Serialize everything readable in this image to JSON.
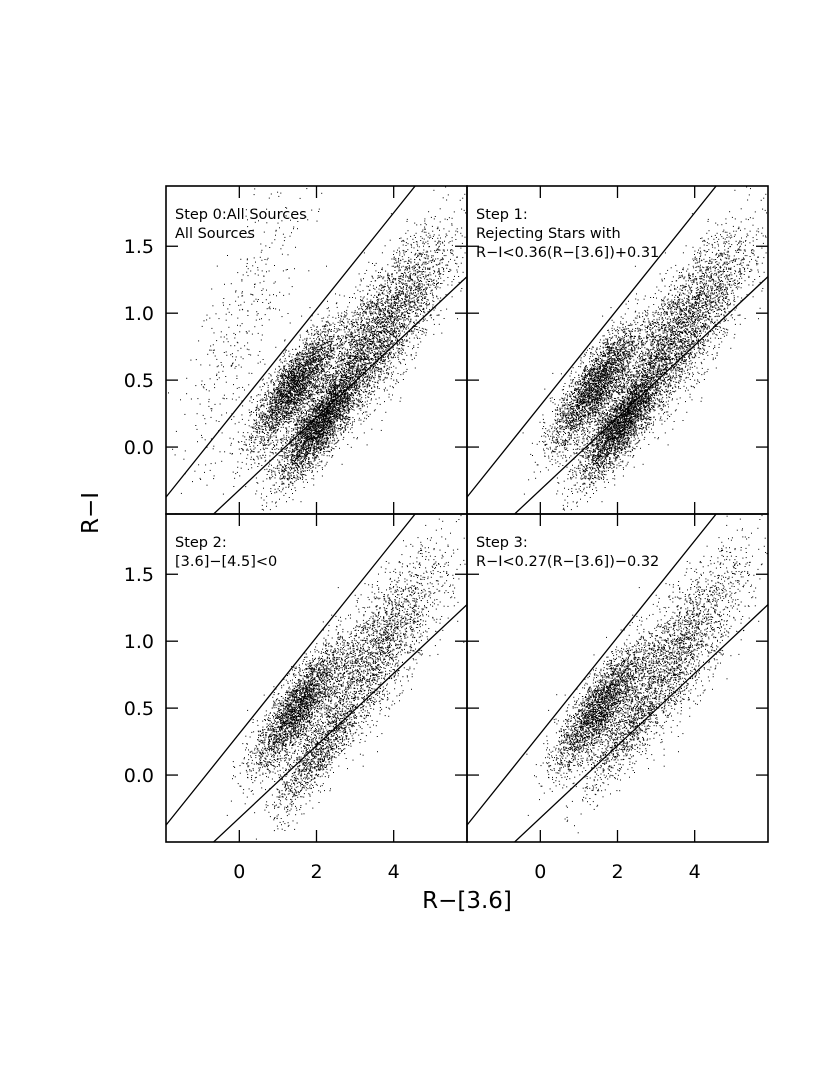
{
  "figure": {
    "xlabel": "R−[3.6]",
    "ylabel": "R−I"
  },
  "chart_data": [
    {
      "type": "scatter",
      "panel": "top-left",
      "annotation": [
        "Step 0:All Sources",
        "All Sources"
      ],
      "xlim": [
        -1.9,
        5.9
      ],
      "ylim": [
        -0.5,
        1.95
      ],
      "x_ticks": [
        0,
        2,
        4
      ],
      "y_ticks": [
        0.0,
        0.5,
        1.0,
        1.5
      ],
      "lines": [
        {
          "slope": 0.36,
          "intercept": 0.31
        },
        {
          "slope": 0.27,
          "intercept": -0.32
        }
      ],
      "clusters": [
        {
          "cx": 1.4,
          "cy": 0.45,
          "count": 3000
        },
        {
          "cx": 2.1,
          "cy": 0.18,
          "count": 3200
        },
        {
          "cx": 3.6,
          "cy": 0.85,
          "count": 3800
        },
        {
          "cx": 0.1,
          "cy": 0.9,
          "count": 400
        }
      ]
    },
    {
      "type": "scatter",
      "panel": "top-right",
      "annotation": [
        "Step 1:",
        "Rejecting Stars with",
        "R−I<0.36(R−[3.6])+0.31"
      ],
      "xlim": [
        -1.9,
        5.9
      ],
      "ylim": [
        -0.5,
        1.95
      ],
      "x_ticks": [
        0,
        2,
        4
      ],
      "y_ticks": [
        0.0,
        0.5,
        1.0,
        1.5
      ],
      "lines": [
        {
          "slope": 0.36,
          "intercept": 0.31
        },
        {
          "slope": 0.27,
          "intercept": -0.32
        }
      ],
      "clusters": [
        {
          "cx": 1.4,
          "cy": 0.45,
          "count": 2900
        },
        {
          "cx": 2.1,
          "cy": 0.18,
          "count": 3100
        },
        {
          "cx": 3.6,
          "cy": 0.85,
          "count": 3600
        }
      ]
    },
    {
      "type": "scatter",
      "panel": "bottom-left",
      "annotation": [
        "Step 2:",
        "[3.6]−[4.5]<0"
      ],
      "xlim": [
        -1.9,
        5.9
      ],
      "ylim": [
        -0.5,
        1.95
      ],
      "x_ticks": [
        0,
        2,
        4
      ],
      "y_ticks": [
        0.0,
        0.5,
        1.0,
        1.5
      ],
      "lines": [
        {
          "slope": 0.36,
          "intercept": 0.31
        },
        {
          "slope": 0.27,
          "intercept": -0.32
        }
      ],
      "clusters": [
        {
          "cx": 1.5,
          "cy": 0.5,
          "count": 2700
        },
        {
          "cx": 2.0,
          "cy": 0.15,
          "count": 1100
        },
        {
          "cx": 3.5,
          "cy": 0.9,
          "count": 2500
        }
      ]
    },
    {
      "type": "scatter",
      "panel": "bottom-right",
      "annotation": [
        "Step 3:",
        "R−I<0.27(R−[3.6])−0.32"
      ],
      "xlim": [
        -1.9,
        5.9
      ],
      "ylim": [
        -0.5,
        1.95
      ],
      "x_ticks": [
        0,
        2,
        4
      ],
      "y_ticks": [
        0.0,
        0.5,
        1.0,
        1.5
      ],
      "lines": [
        {
          "slope": 0.36,
          "intercept": 0.31
        },
        {
          "slope": 0.27,
          "intercept": -0.32
        }
      ],
      "clusters": [
        {
          "cx": 1.5,
          "cy": 0.5,
          "count": 2600
        },
        {
          "cx": 2.2,
          "cy": 0.3,
          "count": 700
        },
        {
          "cx": 3.5,
          "cy": 0.9,
          "count": 2400
        }
      ]
    }
  ]
}
